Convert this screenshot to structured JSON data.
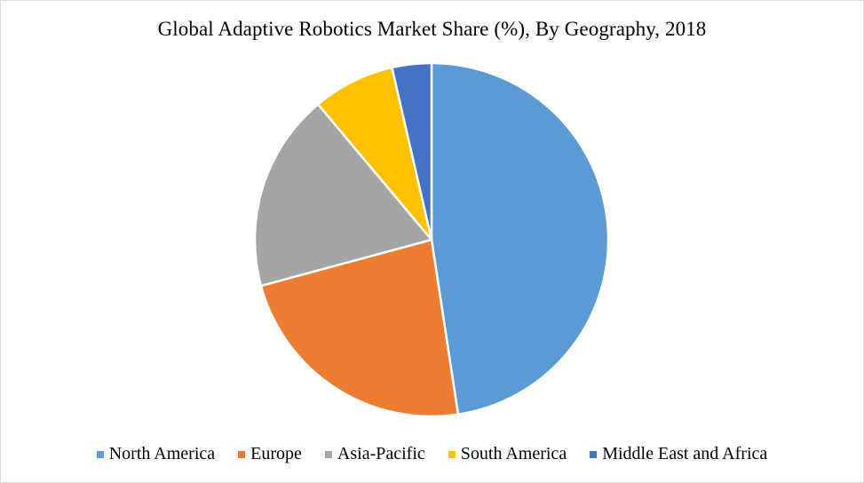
{
  "chart_data": {
    "type": "pie",
    "title": "Global Adaptive Robotics Market Share (%), By Geography, 2018",
    "categories": [
      "North America",
      "Europe",
      "Asia-Pacific",
      "South America",
      "Middle East and Africa"
    ],
    "values": [
      47.6,
      23.2,
      18.1,
      7.5,
      3.6
    ],
    "colors": [
      "#5B9BD5",
      "#ED7D31",
      "#A5A5A5",
      "#FFC000",
      "#4472C4"
    ],
    "start_angle_deg": 0,
    "direction": "clockwise",
    "legend_position": "bottom"
  },
  "legend": [
    {
      "label": "North America",
      "color": "#5B9BD5"
    },
    {
      "label": "Europe",
      "color": "#ED7D31"
    },
    {
      "label": "Asia-Pacific",
      "color": "#A5A5A5"
    },
    {
      "label": "South America",
      "color": "#FFC000"
    },
    {
      "label": "Middle East and Africa",
      "color": "#4472C4"
    }
  ]
}
